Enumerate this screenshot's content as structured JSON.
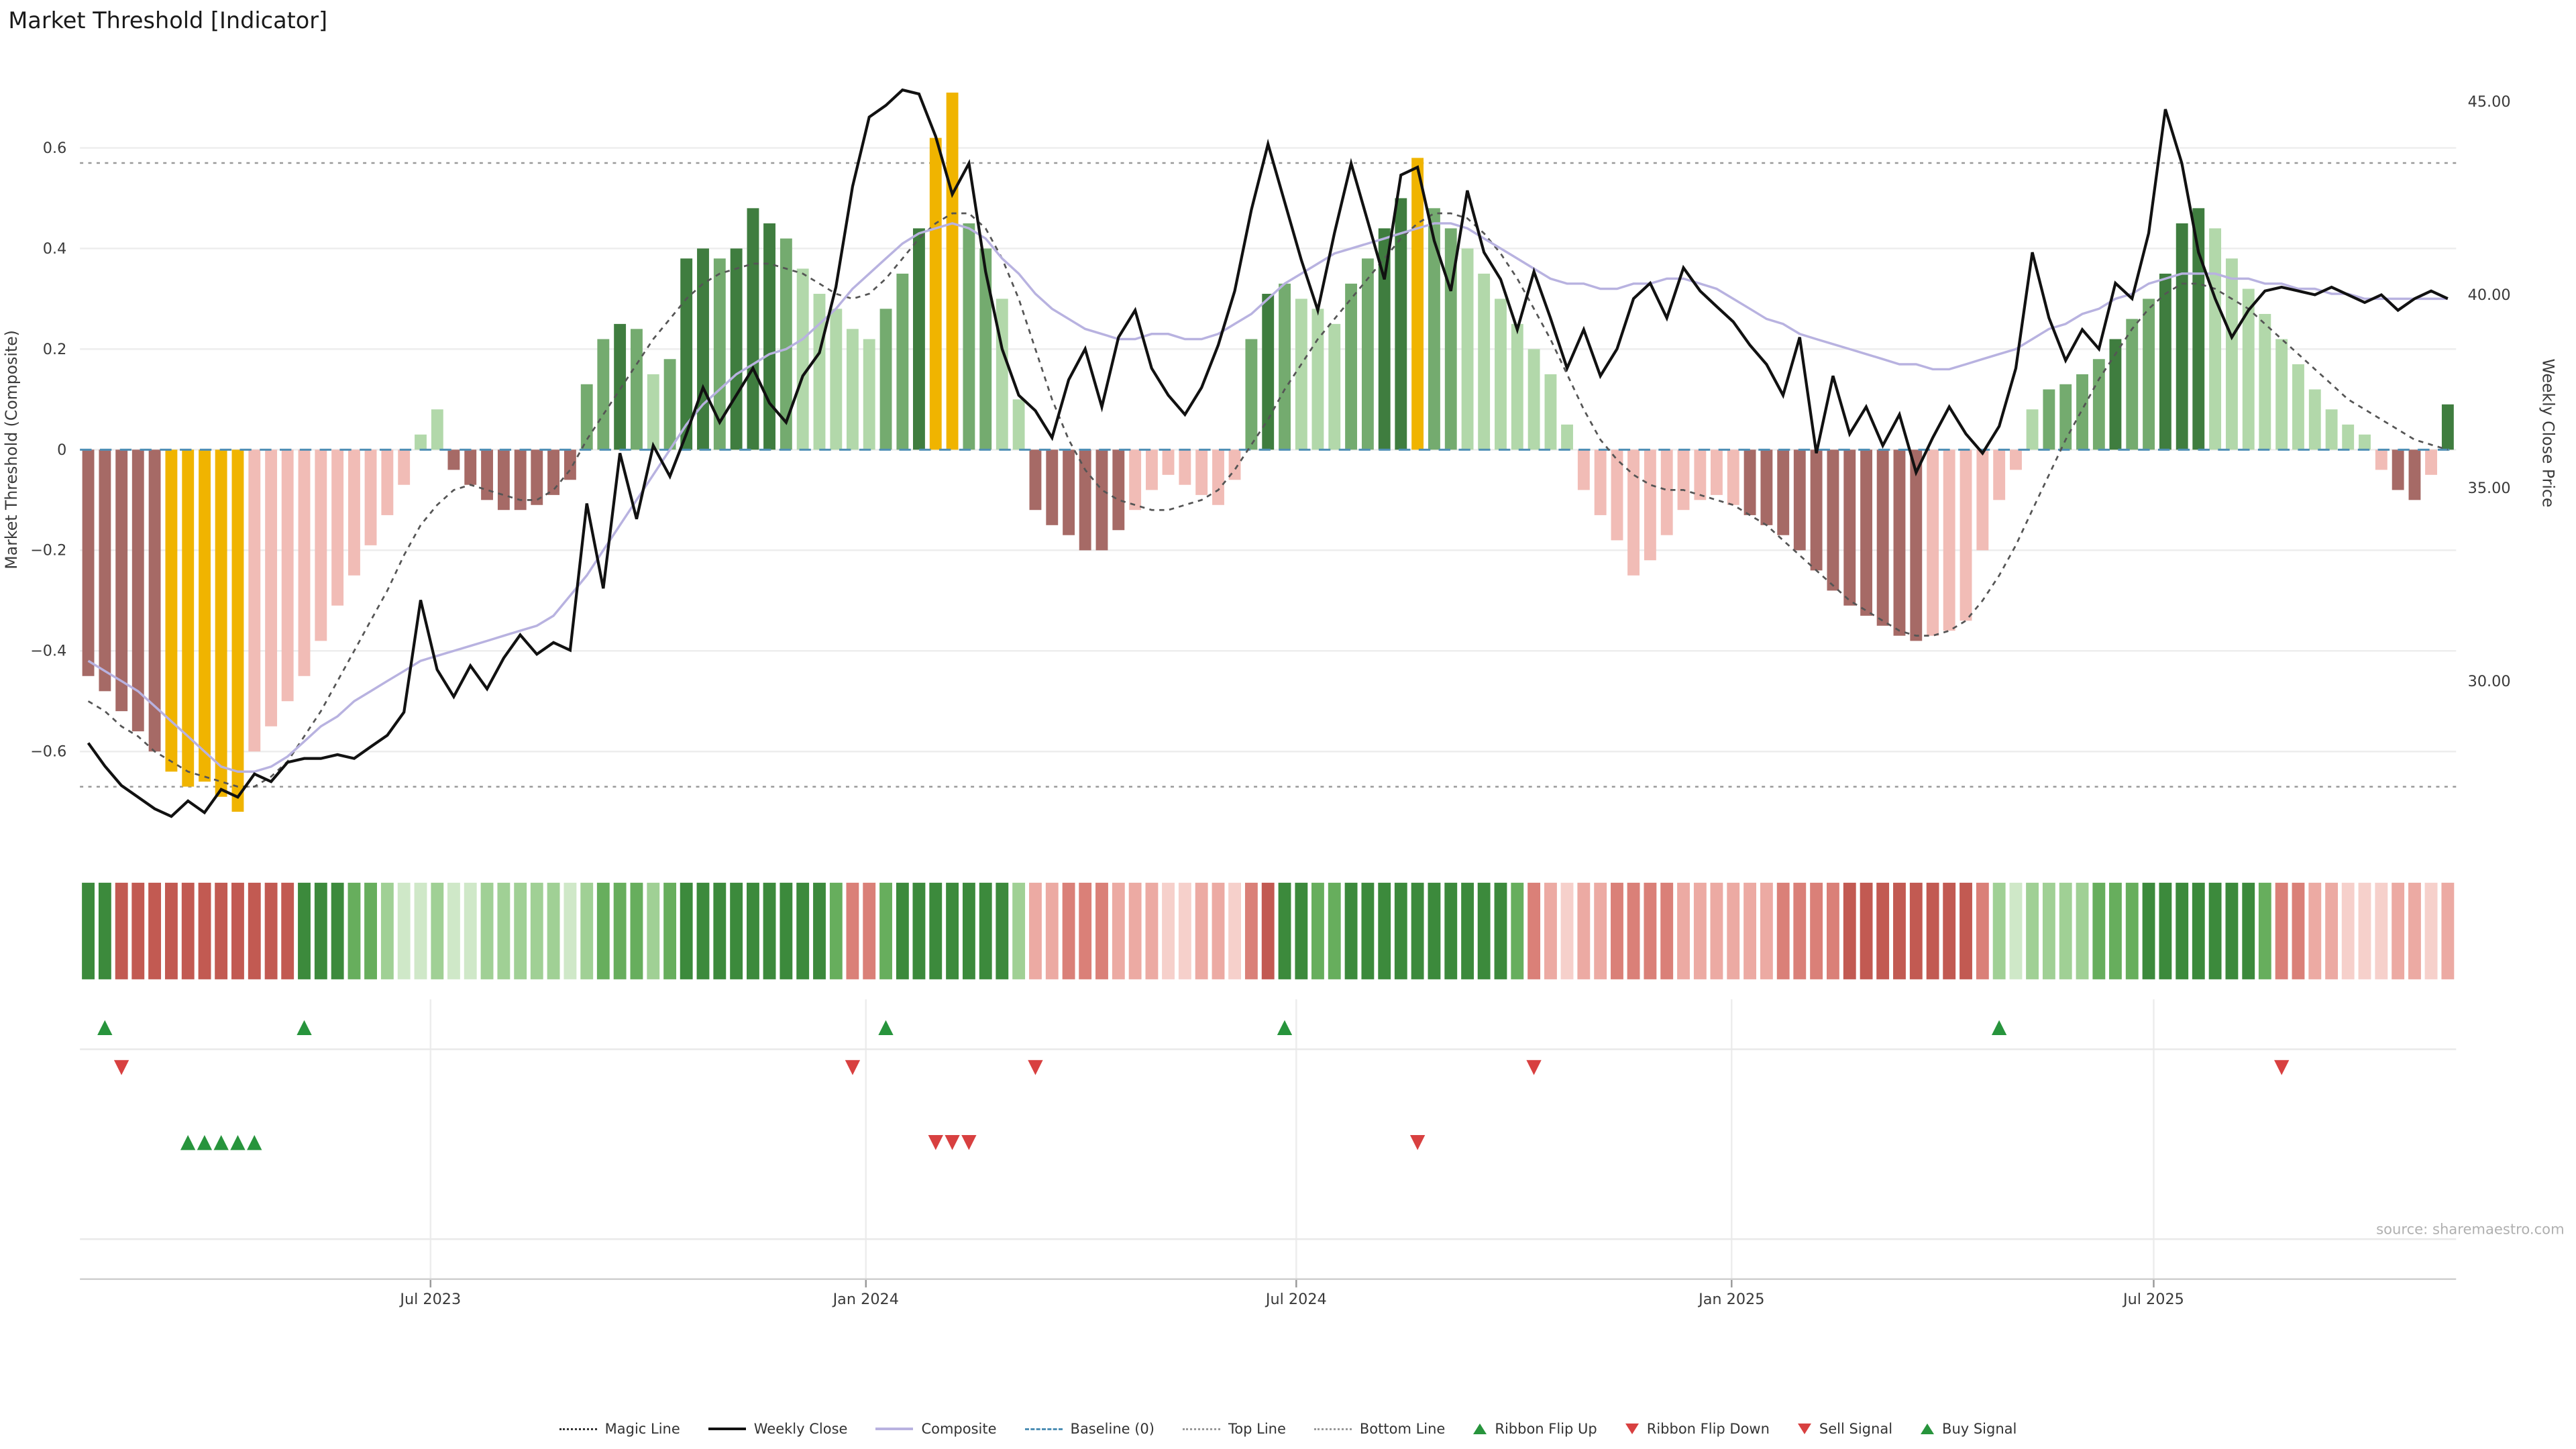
{
  "title": "Market Threshold [Indicator]",
  "source": "source: sharemaestro.com",
  "axes": {
    "left_label": "Market Threshold (Composite)",
    "right_label": "Weekly Close Price",
    "left_ticks": [
      "0.6",
      "0.4",
      "0.2",
      "0",
      "−0.2",
      "−0.4",
      "−0.6"
    ],
    "left_tick_values": [
      0.6,
      0.4,
      0.2,
      0,
      -0.2,
      -0.4,
      -0.6
    ],
    "right_ticks": [
      "45.00",
      "40.00",
      "35.00",
      "30.00"
    ],
    "right_tick_values": [
      45,
      40,
      35,
      30
    ],
    "x_ticks": [
      {
        "label": "Jul 2023",
        "week": 20.6
      },
      {
        "label": "Jan 2024",
        "week": 46.8
      },
      {
        "label": "Jul 2024",
        "week": 72.7
      },
      {
        "label": "Jan 2025",
        "week": 98.9
      },
      {
        "label": "Jul 2025",
        "week": 124.3
      }
    ]
  },
  "colors": {
    "bar": {
      "dg": "#3f7d3f",
      "mg": "#74ab6f",
      "lg": "#b2d8aa",
      "dr": "#a66a66",
      "lr": "#f1bcb6",
      "y": "#f0b400"
    },
    "ribbon": {
      "g1": "#cfe8c8",
      "g2": "#a0d095",
      "g3": "#67ae5d",
      "g4": "#3c8a3c",
      "r1": "#f6d0cb",
      "r2": "#ecaaa3",
      "r3": "#da8078",
      "r4": "#c25a52"
    },
    "weekly_close": "#111111",
    "composite": "#b8b2e0",
    "magic": "#555555",
    "baseline": "#4f8fb5",
    "top_bottom": "#9a9a9a",
    "buy_green": "#27943c",
    "sell_red": "#d84040",
    "grid": "#ededed",
    "axis_text": "#3a3a3a",
    "source_text": "#b0b0b0"
  },
  "legend": {
    "items": [
      {
        "label": "Magic Line",
        "marker": "dotted-dark"
      },
      {
        "label": "Weekly Close",
        "marker": "solid-black"
      },
      {
        "label": "Composite",
        "marker": "solid-purple"
      },
      {
        "label": "Baseline (0)",
        "marker": "dashed-blue"
      },
      {
        "label": "Top Line",
        "marker": "dotted-gray"
      },
      {
        "label": "Bottom Line",
        "marker": "dotted-gray"
      },
      {
        "label": "Ribbon Flip Up",
        "marker": "tri-up-green"
      },
      {
        "label": "Ribbon Flip Down",
        "marker": "tri-down-red"
      },
      {
        "label": "Sell Signal",
        "marker": "tri-down-red"
      },
      {
        "label": "Buy Signal",
        "marker": "tri-up-green"
      }
    ]
  },
  "chart_data": {
    "type": "bar",
    "subtype": "bars-with-overlaid-lines-and-signal-ribbon",
    "x_unit": "week",
    "n_weeks": 143,
    "ylim_left": [
      -0.8,
      0.78
    ],
    "ylim_right_price": [
      26,
      46
    ],
    "top_line": 0.57,
    "bottom_line": -0.67,
    "baseline": 0,
    "threshold": {
      "values": [
        -0.45,
        -0.48,
        -0.52,
        -0.56,
        -0.6,
        -0.64,
        -0.67,
        -0.66,
        -0.69,
        -0.72,
        -0.6,
        -0.55,
        -0.5,
        -0.45,
        -0.38,
        -0.31,
        -0.25,
        -0.19,
        -0.13,
        -0.07,
        0.03,
        0.08,
        -0.04,
        -0.07,
        -0.1,
        -0.12,
        -0.12,
        -0.11,
        -0.09,
        -0.06,
        0.13,
        0.22,
        0.25,
        0.24,
        0.15,
        0.18,
        0.38,
        0.4,
        0.38,
        0.4,
        0.48,
        0.45,
        0.42,
        0.36,
        0.31,
        0.28,
        0.24,
        0.22,
        0.28,
        0.35,
        0.44,
        0.62,
        0.71,
        0.45,
        0.4,
        0.3,
        0.1,
        -0.12,
        -0.15,
        -0.17,
        -0.2,
        -0.2,
        -0.16,
        -0.12,
        -0.08,
        -0.05,
        -0.07,
        -0.09,
        -0.11,
        -0.06,
        0.22,
        0.31,
        0.33,
        0.3,
        0.28,
        0.25,
        0.33,
        0.38,
        0.44,
        0.5,
        0.58,
        0.48,
        0.44,
        0.4,
        0.35,
        0.3,
        0.25,
        0.2,
        0.15,
        0.05,
        -0.08,
        -0.13,
        -0.18,
        -0.25,
        -0.22,
        -0.17,
        -0.12,
        -0.1,
        -0.09,
        -0.11,
        -0.13,
        -0.15,
        -0.17,
        -0.2,
        -0.24,
        -0.28,
        -0.31,
        -0.33,
        -0.35,
        -0.37,
        -0.38,
        -0.37,
        -0.36,
        -0.34,
        -0.2,
        -0.1,
        -0.04,
        0.08,
        0.12,
        0.13,
        0.15,
        0.18,
        0.22,
        0.26,
        0.3,
        0.35,
        0.45,
        0.48,
        0.44,
        0.38,
        0.32,
        0.27,
        0.22,
        0.17,
        0.12,
        0.08,
        0.05,
        0.03,
        -0.04,
        -0.08,
        -0.1,
        -0.05,
        0.09
      ],
      "colors": [
        "dr",
        "dr",
        "dr",
        "dr",
        "dr",
        "y",
        "y",
        "y",
        "y",
        "y",
        "lr",
        "lr",
        "lr",
        "lr",
        "lr",
        "lr",
        "lr",
        "lr",
        "lr",
        "lr",
        "lg",
        "lg",
        "dr",
        "dr",
        "dr",
        "dr",
        "dr",
        "dr",
        "dr",
        "dr",
        "mg",
        "mg",
        "dg",
        "mg",
        "lg",
        "mg",
        "dg",
        "dg",
        "mg",
        "dg",
        "dg",
        "dg",
        "mg",
        "lg",
        "lg",
        "lg",
        "lg",
        "lg",
        "mg",
        "mg",
        "dg",
        "y",
        "y",
        "mg",
        "mg",
        "lg",
        "lg",
        "dr",
        "dr",
        "dr",
        "dr",
        "dr",
        "dr",
        "lr",
        "lr",
        "lr",
        "lr",
        "lr",
        "lr",
        "lr",
        "mg",
        "dg",
        "mg",
        "lg",
        "lg",
        "lg",
        "mg",
        "mg",
        "dg",
        "dg",
        "y",
        "mg",
        "mg",
        "lg",
        "lg",
        "lg",
        "lg",
        "lg",
        "lg",
        "lg",
        "lr",
        "lr",
        "lr",
        "lr",
        "lr",
        "lr",
        "lr",
        "lr",
        "lr",
        "lr",
        "dr",
        "dr",
        "dr",
        "dr",
        "dr",
        "dr",
        "dr",
        "dr",
        "dr",
        "dr",
        "dr",
        "lr",
        "lr",
        "lr",
        "lr",
        "lr",
        "lr",
        "lg",
        "mg",
        "mg",
        "mg",
        "mg",
        "dg",
        "mg",
        "mg",
        "dg",
        "dg",
        "dg",
        "lg",
        "lg",
        "lg",
        "lg",
        "lg",
        "lg",
        "lg",
        "lg",
        "lg",
        "lg",
        "lr",
        "dr",
        "dr",
        "lr",
        "dg"
      ]
    },
    "weekly_close": [
      28.4,
      27.8,
      27.3,
      27.0,
      26.7,
      26.5,
      26.9,
      26.6,
      27.2,
      27.0,
      27.6,
      27.4,
      27.9,
      28.0,
      28.0,
      28.1,
      28.0,
      28.3,
      28.6,
      29.2,
      32.1,
      30.3,
      29.6,
      30.4,
      29.8,
      30.6,
      31.2,
      30.7,
      31.0,
      30.8,
      34.6,
      32.4,
      35.9,
      34.2,
      36.1,
      35.3,
      36.4,
      37.6,
      36.7,
      37.4,
      38.1,
      37.2,
      36.7,
      37.9,
      38.5,
      40.2,
      42.8,
      44.6,
      44.9,
      45.3,
      45.2,
      44.1,
      42.6,
      43.4,
      40.6,
      38.6,
      37.4,
      37.0,
      36.3,
      37.8,
      38.6,
      37.1,
      38.9,
      39.6,
      38.1,
      37.4,
      36.9,
      37.6,
      38.7,
      40.1,
      42.2,
      43.9,
      42.4,
      40.9,
      39.6,
      41.6,
      43.4,
      41.9,
      40.4,
      43.1,
      43.3,
      41.4,
      40.1,
      42.7,
      41.1,
      40.4,
      39.1,
      40.6,
      39.4,
      38.1,
      39.1,
      37.9,
      38.6,
      39.9,
      40.3,
      39.4,
      40.7,
      40.1,
      39.7,
      39.3,
      38.7,
      38.2,
      37.4,
      38.9,
      35.9,
      37.9,
      36.4,
      37.1,
      36.1,
      36.9,
      35.4,
      36.3,
      37.1,
      36.4,
      35.9,
      36.6,
      38.1,
      41.1,
      39.4,
      38.3,
      39.1,
      38.6,
      40.3,
      39.9,
      41.6,
      44.8,
      43.4,
      41.1,
      39.9,
      38.9,
      39.6,
      40.1,
      40.2,
      40.1,
      40.0,
      40.2,
      40.0,
      39.8,
      40.0,
      39.6,
      39.9,
      40.1,
      39.9
    ],
    "composite": [
      -0.42,
      -0.44,
      -0.46,
      -0.48,
      -0.51,
      -0.54,
      -0.57,
      -0.6,
      -0.63,
      -0.64,
      -0.64,
      -0.63,
      -0.61,
      -0.58,
      -0.55,
      -0.53,
      -0.5,
      -0.48,
      -0.46,
      -0.44,
      -0.42,
      -0.41,
      -0.4,
      -0.39,
      -0.38,
      -0.37,
      -0.36,
      -0.35,
      -0.33,
      -0.29,
      -0.25,
      -0.2,
      -0.15,
      -0.1,
      -0.05,
      0.0,
      0.05,
      0.09,
      0.12,
      0.15,
      0.17,
      0.19,
      0.2,
      0.22,
      0.25,
      0.28,
      0.32,
      0.35,
      0.38,
      0.41,
      0.43,
      0.44,
      0.45,
      0.44,
      0.42,
      0.38,
      0.35,
      0.31,
      0.28,
      0.26,
      0.24,
      0.23,
      0.22,
      0.22,
      0.23,
      0.23,
      0.22,
      0.22,
      0.23,
      0.25,
      0.27,
      0.3,
      0.33,
      0.35,
      0.37,
      0.39,
      0.4,
      0.41,
      0.42,
      0.43,
      0.44,
      0.45,
      0.45,
      0.44,
      0.42,
      0.4,
      0.38,
      0.36,
      0.34,
      0.33,
      0.33,
      0.32,
      0.32,
      0.33,
      0.33,
      0.34,
      0.34,
      0.33,
      0.32,
      0.3,
      0.28,
      0.26,
      0.25,
      0.23,
      0.22,
      0.21,
      0.2,
      0.19,
      0.18,
      0.17,
      0.17,
      0.16,
      0.16,
      0.17,
      0.18,
      0.19,
      0.2,
      0.22,
      0.24,
      0.25,
      0.27,
      0.28,
      0.3,
      0.31,
      0.33,
      0.34,
      0.35,
      0.35,
      0.35,
      0.34,
      0.34,
      0.33,
      0.33,
      0.32,
      0.32,
      0.31,
      0.31,
      0.3,
      0.3,
      0.3,
      0.3,
      0.3,
      0.3
    ],
    "magic_line": [
      -0.5,
      -0.52,
      -0.55,
      -0.57,
      -0.6,
      -0.62,
      -0.64,
      -0.65,
      -0.66,
      -0.67,
      -0.67,
      -0.65,
      -0.62,
      -0.57,
      -0.52,
      -0.46,
      -0.4,
      -0.34,
      -0.28,
      -0.21,
      -0.15,
      -0.11,
      -0.08,
      -0.07,
      -0.08,
      -0.09,
      -0.1,
      -0.1,
      -0.08,
      -0.04,
      0.02,
      0.07,
      0.12,
      0.17,
      0.22,
      0.26,
      0.3,
      0.33,
      0.35,
      0.36,
      0.37,
      0.37,
      0.36,
      0.35,
      0.33,
      0.31,
      0.3,
      0.31,
      0.34,
      0.38,
      0.42,
      0.45,
      0.47,
      0.47,
      0.44,
      0.38,
      0.3,
      0.2,
      0.1,
      0.02,
      -0.04,
      -0.08,
      -0.1,
      -0.11,
      -0.12,
      -0.12,
      -0.11,
      -0.1,
      -0.08,
      -0.04,
      0.01,
      0.06,
      0.12,
      0.17,
      0.22,
      0.26,
      0.3,
      0.34,
      0.38,
      0.42,
      0.45,
      0.47,
      0.47,
      0.46,
      0.43,
      0.39,
      0.34,
      0.28,
      0.22,
      0.15,
      0.08,
      0.02,
      -0.02,
      -0.05,
      -0.07,
      -0.08,
      -0.08,
      -0.09,
      -0.1,
      -0.11,
      -0.13,
      -0.15,
      -0.18,
      -0.21,
      -0.24,
      -0.27,
      -0.3,
      -0.32,
      -0.34,
      -0.36,
      -0.37,
      -0.37,
      -0.36,
      -0.34,
      -0.3,
      -0.25,
      -0.19,
      -0.12,
      -0.05,
      0.02,
      0.08,
      0.14,
      0.19,
      0.24,
      0.28,
      0.31,
      0.33,
      0.33,
      0.32,
      0.3,
      0.28,
      0.25,
      0.22,
      0.19,
      0.16,
      0.13,
      0.1,
      0.08,
      0.06,
      0.04,
      0.02,
      0.01,
      0.0
    ],
    "signals": {
      "ribbon_flip_up_weeks": [
        1,
        13,
        48,
        72,
        115
      ],
      "ribbon_flip_down_weeks": [
        2,
        46,
        57,
        87,
        132
      ],
      "buy_signal_weeks": [
        6,
        7,
        8,
        9,
        10
      ],
      "sell_signal_weeks": [
        51,
        52,
        53,
        80
      ]
    }
  }
}
